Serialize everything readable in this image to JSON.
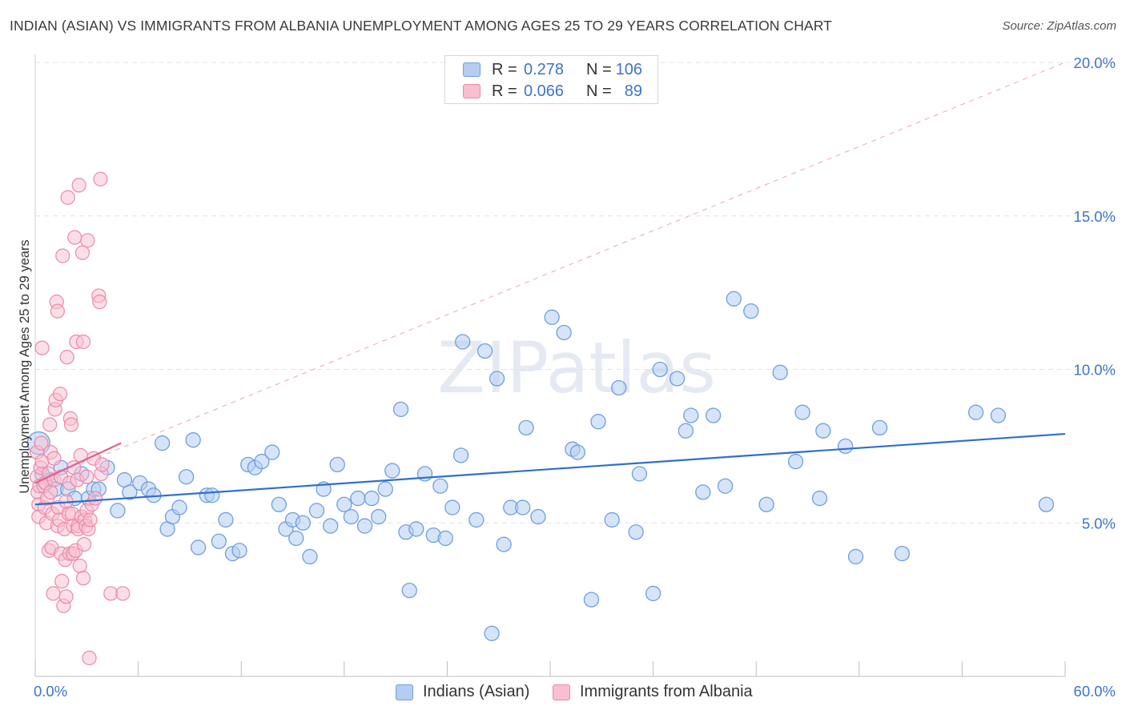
{
  "header": {
    "title": "INDIAN (ASIAN) VS IMMIGRANTS FROM ALBANIA UNEMPLOYMENT AMONG AGES 25 TO 29 YEARS CORRELATION CHART",
    "source": "Source: ZipAtlas.com"
  },
  "legend": {
    "rows": [
      {
        "r_label": "R =",
        "r_value": "0.278",
        "n_label": "N =",
        "n_value": "106"
      },
      {
        "r_label": "R =",
        "r_value": "0.066",
        "n_label": "N =",
        "n_value": "89"
      }
    ],
    "bottom": [
      "Indians (Asian)",
      "Immigrants from Albania"
    ]
  },
  "colors": {
    "blue_fill": "#b5cdf0",
    "blue_stroke": "#6f9fe0",
    "blue_line": "#2f6fce",
    "pink_fill": "#f7bfd0",
    "pink_stroke": "#ec89a8",
    "pink_line": "#e0608a",
    "axis_text": "#3c74cc",
    "grid": "#e2e2e2"
  },
  "chart_data": {
    "type": "scatter",
    "title": "INDIAN (ASIAN) VS IMMIGRANTS FROM ALBANIA UNEMPLOYMENT AMONG AGES 25 TO 29 YEARS CORRELATION CHART",
    "xlabel": "",
    "ylabel": "Unemployment Among Ages 25 to 29 years",
    "xlim": [
      0,
      60
    ],
    "ylim": [
      0,
      20
    ],
    "x_tick_labels": [
      "0.0%",
      "60.0%"
    ],
    "y_ticks": [
      {
        "value": 5,
        "label": "5.0%"
      },
      {
        "value": 10,
        "label": "10.0%"
      },
      {
        "value": 15,
        "label": "15.0%"
      },
      {
        "value": 20,
        "label": "20.0%"
      }
    ],
    "watermark": "ZIPatlas",
    "series": [
      {
        "name": "Indians (Asian)",
        "R": 0.278,
        "N": 106,
        "trend": {
          "x0": 0,
          "y0": 5.6,
          "x1": 60,
          "y1": 7.9
        },
        "points": [
          [
            0.2,
            7.6
          ],
          [
            0.4,
            6.6
          ],
          [
            0.6,
            6.3
          ],
          [
            0.9,
            6.4
          ],
          [
            1.2,
            6.1
          ],
          [
            1.5,
            6.8
          ],
          [
            1.9,
            6.1
          ],
          [
            2.3,
            5.8
          ],
          [
            2.7,
            6.6
          ],
          [
            3.1,
            5.8
          ],
          [
            3.4,
            6.1
          ],
          [
            3.7,
            6.1
          ],
          [
            4.2,
            6.8
          ],
          [
            4.8,
            5.4
          ],
          [
            5.2,
            6.4
          ],
          [
            5.5,
            6.0
          ],
          [
            6.1,
            6.3
          ],
          [
            6.6,
            6.1
          ],
          [
            6.9,
            5.9
          ],
          [
            7.4,
            7.6
          ],
          [
            7.7,
            4.8
          ],
          [
            8.0,
            5.2
          ],
          [
            8.4,
            5.5
          ],
          [
            8.8,
            6.5
          ],
          [
            9.2,
            7.7
          ],
          [
            9.5,
            4.2
          ],
          [
            10.0,
            5.9
          ],
          [
            10.3,
            5.9
          ],
          [
            10.7,
            4.4
          ],
          [
            11.1,
            5.1
          ],
          [
            11.5,
            4.0
          ],
          [
            11.9,
            4.1
          ],
          [
            12.4,
            6.9
          ],
          [
            12.8,
            6.8
          ],
          [
            13.2,
            7.0
          ],
          [
            13.8,
            7.3
          ],
          [
            14.2,
            5.6
          ],
          [
            14.6,
            4.8
          ],
          [
            15.0,
            5.1
          ],
          [
            15.2,
            4.5
          ],
          [
            15.6,
            5.0
          ],
          [
            16.0,
            3.9
          ],
          [
            16.4,
            5.4
          ],
          [
            16.8,
            6.1
          ],
          [
            17.2,
            4.9
          ],
          [
            17.6,
            6.9
          ],
          [
            18.0,
            5.6
          ],
          [
            18.4,
            5.2
          ],
          [
            18.8,
            5.8
          ],
          [
            19.2,
            4.9
          ],
          [
            19.6,
            5.8
          ],
          [
            20.0,
            5.2
          ],
          [
            20.4,
            6.1
          ],
          [
            20.8,
            6.7
          ],
          [
            21.3,
            8.7
          ],
          [
            21.6,
            4.7
          ],
          [
            21.8,
            2.8
          ],
          [
            22.2,
            4.8
          ],
          [
            22.7,
            6.6
          ],
          [
            23.2,
            4.6
          ],
          [
            23.6,
            6.2
          ],
          [
            23.9,
            4.5
          ],
          [
            24.3,
            5.5
          ],
          [
            24.8,
            7.2
          ],
          [
            24.9,
            10.9
          ],
          [
            25.7,
            5.1
          ],
          [
            26.2,
            10.6
          ],
          [
            26.6,
            1.4
          ],
          [
            26.9,
            9.7
          ],
          [
            27.3,
            4.3
          ],
          [
            27.7,
            5.5
          ],
          [
            28.4,
            5.5
          ],
          [
            28.6,
            8.1
          ],
          [
            29.3,
            5.2
          ],
          [
            30.1,
            11.7
          ],
          [
            30.8,
            11.2
          ],
          [
            31.3,
            7.4
          ],
          [
            31.6,
            7.3
          ],
          [
            32.4,
            2.5
          ],
          [
            32.8,
            8.3
          ],
          [
            33.6,
            5.1
          ],
          [
            34.0,
            9.4
          ],
          [
            35.0,
            4.7
          ],
          [
            35.2,
            6.6
          ],
          [
            36.0,
            2.7
          ],
          [
            36.4,
            10.0
          ],
          [
            37.4,
            9.7
          ],
          [
            37.9,
            8.0
          ],
          [
            38.2,
            8.5
          ],
          [
            38.9,
            6.0
          ],
          [
            39.5,
            8.5
          ],
          [
            40.2,
            6.2
          ],
          [
            40.7,
            12.3
          ],
          [
            41.7,
            11.9
          ],
          [
            42.6,
            5.6
          ],
          [
            43.4,
            9.9
          ],
          [
            44.3,
            7.0
          ],
          [
            44.7,
            8.6
          ],
          [
            45.7,
            5.8
          ],
          [
            45.9,
            8.0
          ],
          [
            47.2,
            7.5
          ],
          [
            47.8,
            3.9
          ],
          [
            49.2,
            8.1
          ],
          [
            50.5,
            4.0
          ],
          [
            54.8,
            8.6
          ],
          [
            56.1,
            8.5
          ],
          [
            58.9,
            5.6
          ]
        ]
      },
      {
        "name": "Immigrants from Albania",
        "R": 0.066,
        "N": 89,
        "trend": {
          "x0": 0,
          "y0": 6.3,
          "x1": 5,
          "y1": 7.6
        },
        "trend_extension": {
          "x0": 0,
          "y0": 6.3,
          "x1": 60,
          "y1": 20.0
        },
        "points": [
          [
            0.1,
            7.3
          ],
          [
            0.1,
            6.5
          ],
          [
            0.15,
            6.0
          ],
          [
            0.2,
            5.6
          ],
          [
            0.2,
            5.2
          ],
          [
            0.25,
            6.2
          ],
          [
            0.3,
            6.8
          ],
          [
            0.35,
            7.6
          ],
          [
            0.4,
            7.0
          ],
          [
            0.4,
            10.7
          ],
          [
            0.5,
            6.2
          ],
          [
            0.55,
            5.5
          ],
          [
            0.6,
            6.3
          ],
          [
            0.65,
            5.0
          ],
          [
            0.7,
            5.8
          ],
          [
            0.8,
            6.6
          ],
          [
            0.8,
            4.1
          ],
          [
            0.85,
            8.2
          ],
          [
            0.9,
            7.3
          ],
          [
            0.9,
            6.0
          ],
          [
            0.95,
            4.2
          ],
          [
            1.0,
            5.3
          ],
          [
            1.05,
            2.7
          ],
          [
            1.1,
            7.1
          ],
          [
            1.1,
            6.4
          ],
          [
            1.15,
            8.7
          ],
          [
            1.2,
            9.0
          ],
          [
            1.25,
            12.2
          ],
          [
            1.3,
            11.9
          ],
          [
            1.3,
            4.9
          ],
          [
            1.35,
            5.5
          ],
          [
            1.4,
            5.1
          ],
          [
            1.45,
            9.2
          ],
          [
            1.5,
            6.5
          ],
          [
            1.5,
            4.0
          ],
          [
            1.55,
            3.1
          ],
          [
            1.6,
            13.7
          ],
          [
            1.65,
            2.3
          ],
          [
            1.7,
            4.8
          ],
          [
            1.75,
            3.8
          ],
          [
            1.8,
            5.7
          ],
          [
            1.8,
            2.6
          ],
          [
            1.85,
            10.4
          ],
          [
            1.9,
            15.6
          ],
          [
            1.95,
            5.3
          ],
          [
            2.0,
            6.3
          ],
          [
            2.0,
            4.0
          ],
          [
            2.05,
            8.4
          ],
          [
            2.1,
            8.2
          ],
          [
            2.15,
            5.3
          ],
          [
            2.2,
            4.9
          ],
          [
            2.2,
            4.0
          ],
          [
            2.25,
            6.8
          ],
          [
            2.3,
            14.3
          ],
          [
            2.35,
            4.1
          ],
          [
            2.4,
            10.9
          ],
          [
            2.45,
            6.4
          ],
          [
            2.5,
            4.9
          ],
          [
            2.5,
            4.8
          ],
          [
            2.55,
            16.0
          ],
          [
            2.6,
            3.6
          ],
          [
            2.65,
            7.2
          ],
          [
            2.7,
            5.2
          ],
          [
            2.75,
            13.8
          ],
          [
            2.8,
            10.9
          ],
          [
            2.8,
            3.2
          ],
          [
            2.85,
            4.3
          ],
          [
            2.9,
            5.1
          ],
          [
            2.95,
            4.9
          ],
          [
            3.0,
            6.5
          ],
          [
            3.0,
            5.4
          ],
          [
            3.05,
            14.2
          ],
          [
            3.1,
            4.8
          ],
          [
            3.15,
            0.6
          ],
          [
            3.2,
            5.1
          ],
          [
            3.3,
            5.6
          ],
          [
            3.4,
            7.1
          ],
          [
            3.5,
            5.8
          ],
          [
            3.7,
            12.4
          ],
          [
            3.75,
            12.2
          ],
          [
            3.8,
            16.2
          ],
          [
            3.85,
            6.6
          ],
          [
            3.9,
            6.9
          ],
          [
            4.4,
            2.7
          ],
          [
            5.1,
            2.7
          ]
        ]
      }
    ]
  }
}
